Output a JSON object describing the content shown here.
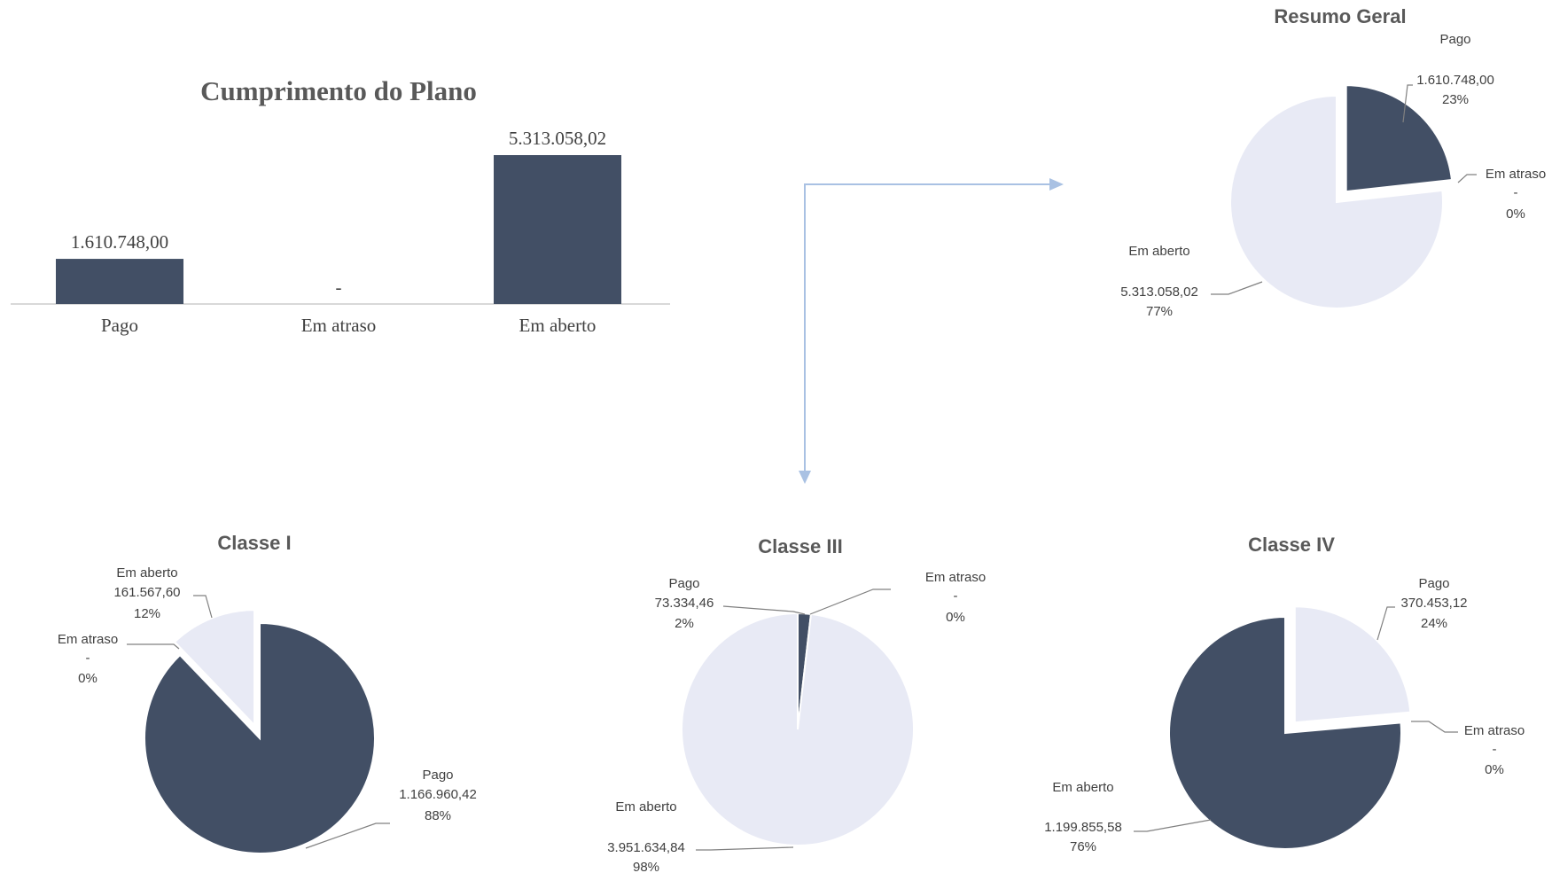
{
  "colors": {
    "dark": "#424f65",
    "light": "#e8eaf5",
    "axis": "#d9d9d9",
    "leader": "#808080",
    "arrow": "#a9c1e3",
    "text": "#404040"
  },
  "chart_data": [
    {
      "type": "bar",
      "title": "Cumprimento do Plano",
      "categories": [
        "Pago",
        "Em atraso",
        "Em aberto"
      ],
      "values": [
        1610748.0,
        0,
        5313058.02
      ],
      "data_labels": [
        "1.610.748,00",
        "-",
        "5.313.058,02"
      ],
      "xlabel": "",
      "ylabel": "",
      "ylim": [
        0,
        5313058.02
      ],
      "grid": false
    },
    {
      "type": "pie",
      "title": "Resumo Geral",
      "categories": [
        "Pago",
        "Em atraso",
        "Em aberto"
      ],
      "values": [
        1610748.0,
        0,
        5313058.02
      ],
      "value_labels": [
        "1.610.748,00",
        "-",
        "5.313.058,02"
      ],
      "percent_labels": [
        "23%",
        "0%",
        "77%"
      ],
      "colors": [
        "dark",
        "light",
        "light"
      ],
      "exploded": "Pago"
    },
    {
      "type": "pie",
      "title": "Classe I",
      "categories": [
        "Pago",
        "Em atraso",
        "Em aberto"
      ],
      "values": [
        1166960.42,
        0,
        161567.6
      ],
      "value_labels": [
        "1.166.960,42",
        "-",
        "161.567,60"
      ],
      "percent_labels": [
        "88%",
        "0%",
        "12%"
      ],
      "colors": [
        "dark",
        "light",
        "light"
      ],
      "exploded": "Em aberto"
    },
    {
      "type": "pie",
      "title": "Classe III",
      "categories": [
        "Pago",
        "Em atraso",
        "Em aberto"
      ],
      "values": [
        73334.46,
        0,
        3951634.84
      ],
      "value_labels": [
        "73.334,46",
        "-",
        "3.951.634,84"
      ],
      "percent_labels": [
        "2%",
        "0%",
        "98%"
      ],
      "colors": [
        "dark",
        "light",
        "light"
      ],
      "exploded": ""
    },
    {
      "type": "pie",
      "title": "Classe IV",
      "categories": [
        "Pago",
        "Em atraso",
        "Em aberto"
      ],
      "values": [
        370453.12,
        0,
        1199855.58
      ],
      "value_labels": [
        "370.453,12",
        "-",
        "1.199.855,58"
      ],
      "percent_labels": [
        "24%",
        "0%",
        "76%"
      ],
      "colors": [
        "light",
        "light",
        "dark"
      ],
      "exploded": "Pago"
    }
  ]
}
